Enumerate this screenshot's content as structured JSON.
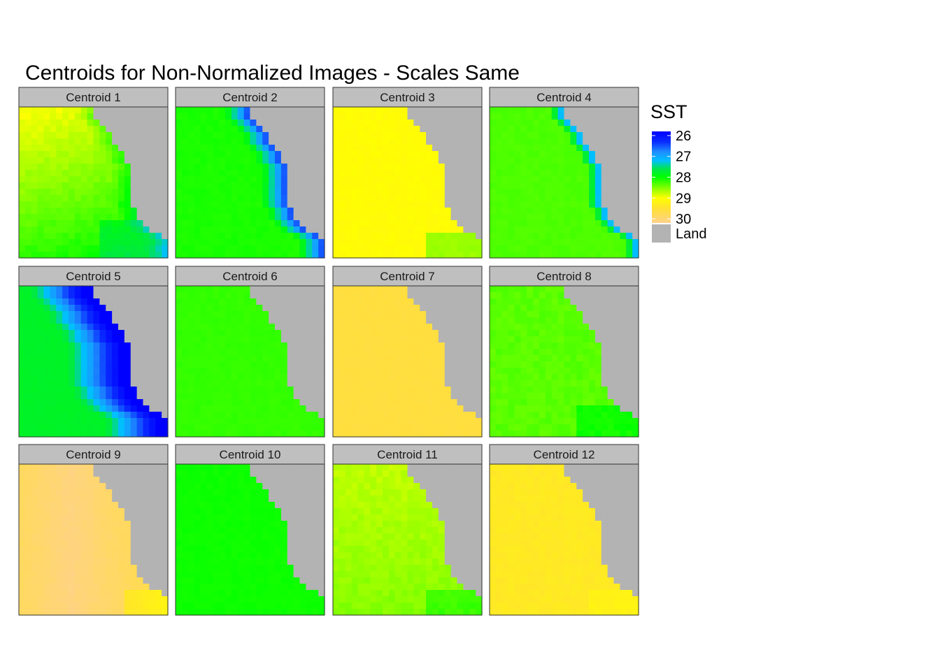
{
  "chart_data": {
    "type": "heatmap",
    "title": "Centroids for Non-Normalized Images - Scales Same",
    "layout": {
      "rows": 3,
      "cols": 4
    },
    "grid": false,
    "legend": {
      "title": "SST",
      "position": "right",
      "range": [
        25.8,
        30.2
      ],
      "breaks": [
        "26",
        "27",
        "28",
        "29",
        "30"
      ],
      "land_label": "Land",
      "land_color": "#b3b3b3",
      "colors": [
        {
          "value": 25.8,
          "color": "#0000ff"
        },
        {
          "value": 26.3,
          "color": "#0a2cff"
        },
        {
          "value": 26.8,
          "color": "#1e90ff"
        },
        {
          "value": 27.2,
          "color": "#00bfff"
        },
        {
          "value": 27.6,
          "color": "#00e64d"
        },
        {
          "value": 28.0,
          "color": "#00ff00"
        },
        {
          "value": 28.5,
          "color": "#80ff00"
        },
        {
          "value": 29.0,
          "color": "#ffff00"
        },
        {
          "value": 29.5,
          "color": "#ffe033"
        },
        {
          "value": 30.2,
          "color": "#ffd28c"
        }
      ]
    },
    "panels": [
      {
        "label": "Centroid 1",
        "base": 28.6,
        "mode": "c1"
      },
      {
        "label": "Centroid 2",
        "base": 28.1,
        "mode": "front"
      },
      {
        "label": "Centroid 3",
        "base": 29.05,
        "mode": "c3"
      },
      {
        "label": "Centroid 4",
        "base": 28.3,
        "mode": "front_weak"
      },
      {
        "label": "Centroid 5",
        "base": 27.8,
        "mode": "front_strong"
      },
      {
        "label": "Centroid 6",
        "base": 28.2,
        "mode": "flat"
      },
      {
        "label": "Centroid 7",
        "base": 29.6,
        "mode": "flat"
      },
      {
        "label": "Centroid 8",
        "base": 28.35,
        "mode": "c8"
      },
      {
        "label": "Centroid 9",
        "base": 30.1,
        "mode": "c9"
      },
      {
        "label": "Centroid 10",
        "base": 28.05,
        "mode": "flat"
      },
      {
        "label": "Centroid 11",
        "base": 28.75,
        "mode": "c11"
      },
      {
        "label": "Centroid 12",
        "base": 29.35,
        "mode": "c12"
      }
    ]
  }
}
